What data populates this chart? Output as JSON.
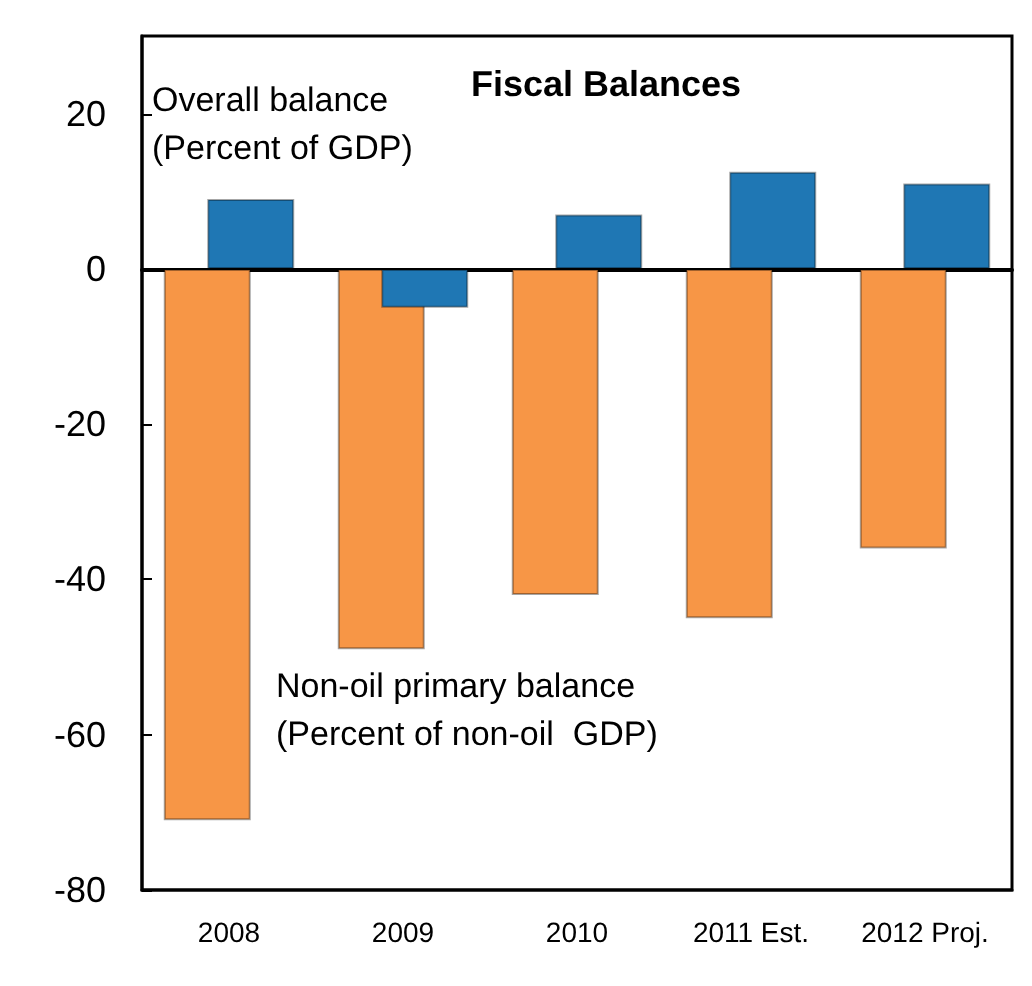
{
  "chart_data": {
    "type": "bar",
    "title": "Fiscal Balances",
    "categories": [
      "2008",
      "2009",
      "2010",
      "2011 Est.",
      "2012 Proj."
    ],
    "series": [
      {
        "name": "Non-oil primary balance\n(Percent of non-oil  GDP)",
        "color": "#f79646",
        "values": [
          -71,
          -49,
          -42,
          -45,
          -36
        ]
      },
      {
        "name": "Overall balance\n(Percent of GDP)",
        "color": "#1f77b4",
        "values": [
          9,
          -5,
          7,
          12.5,
          11
        ]
      }
    ],
    "ylim": [
      -80,
      30
    ],
    "yticks": [
      -80,
      -60,
      -40,
      -20,
      0,
      20
    ],
    "legend": false
  }
}
